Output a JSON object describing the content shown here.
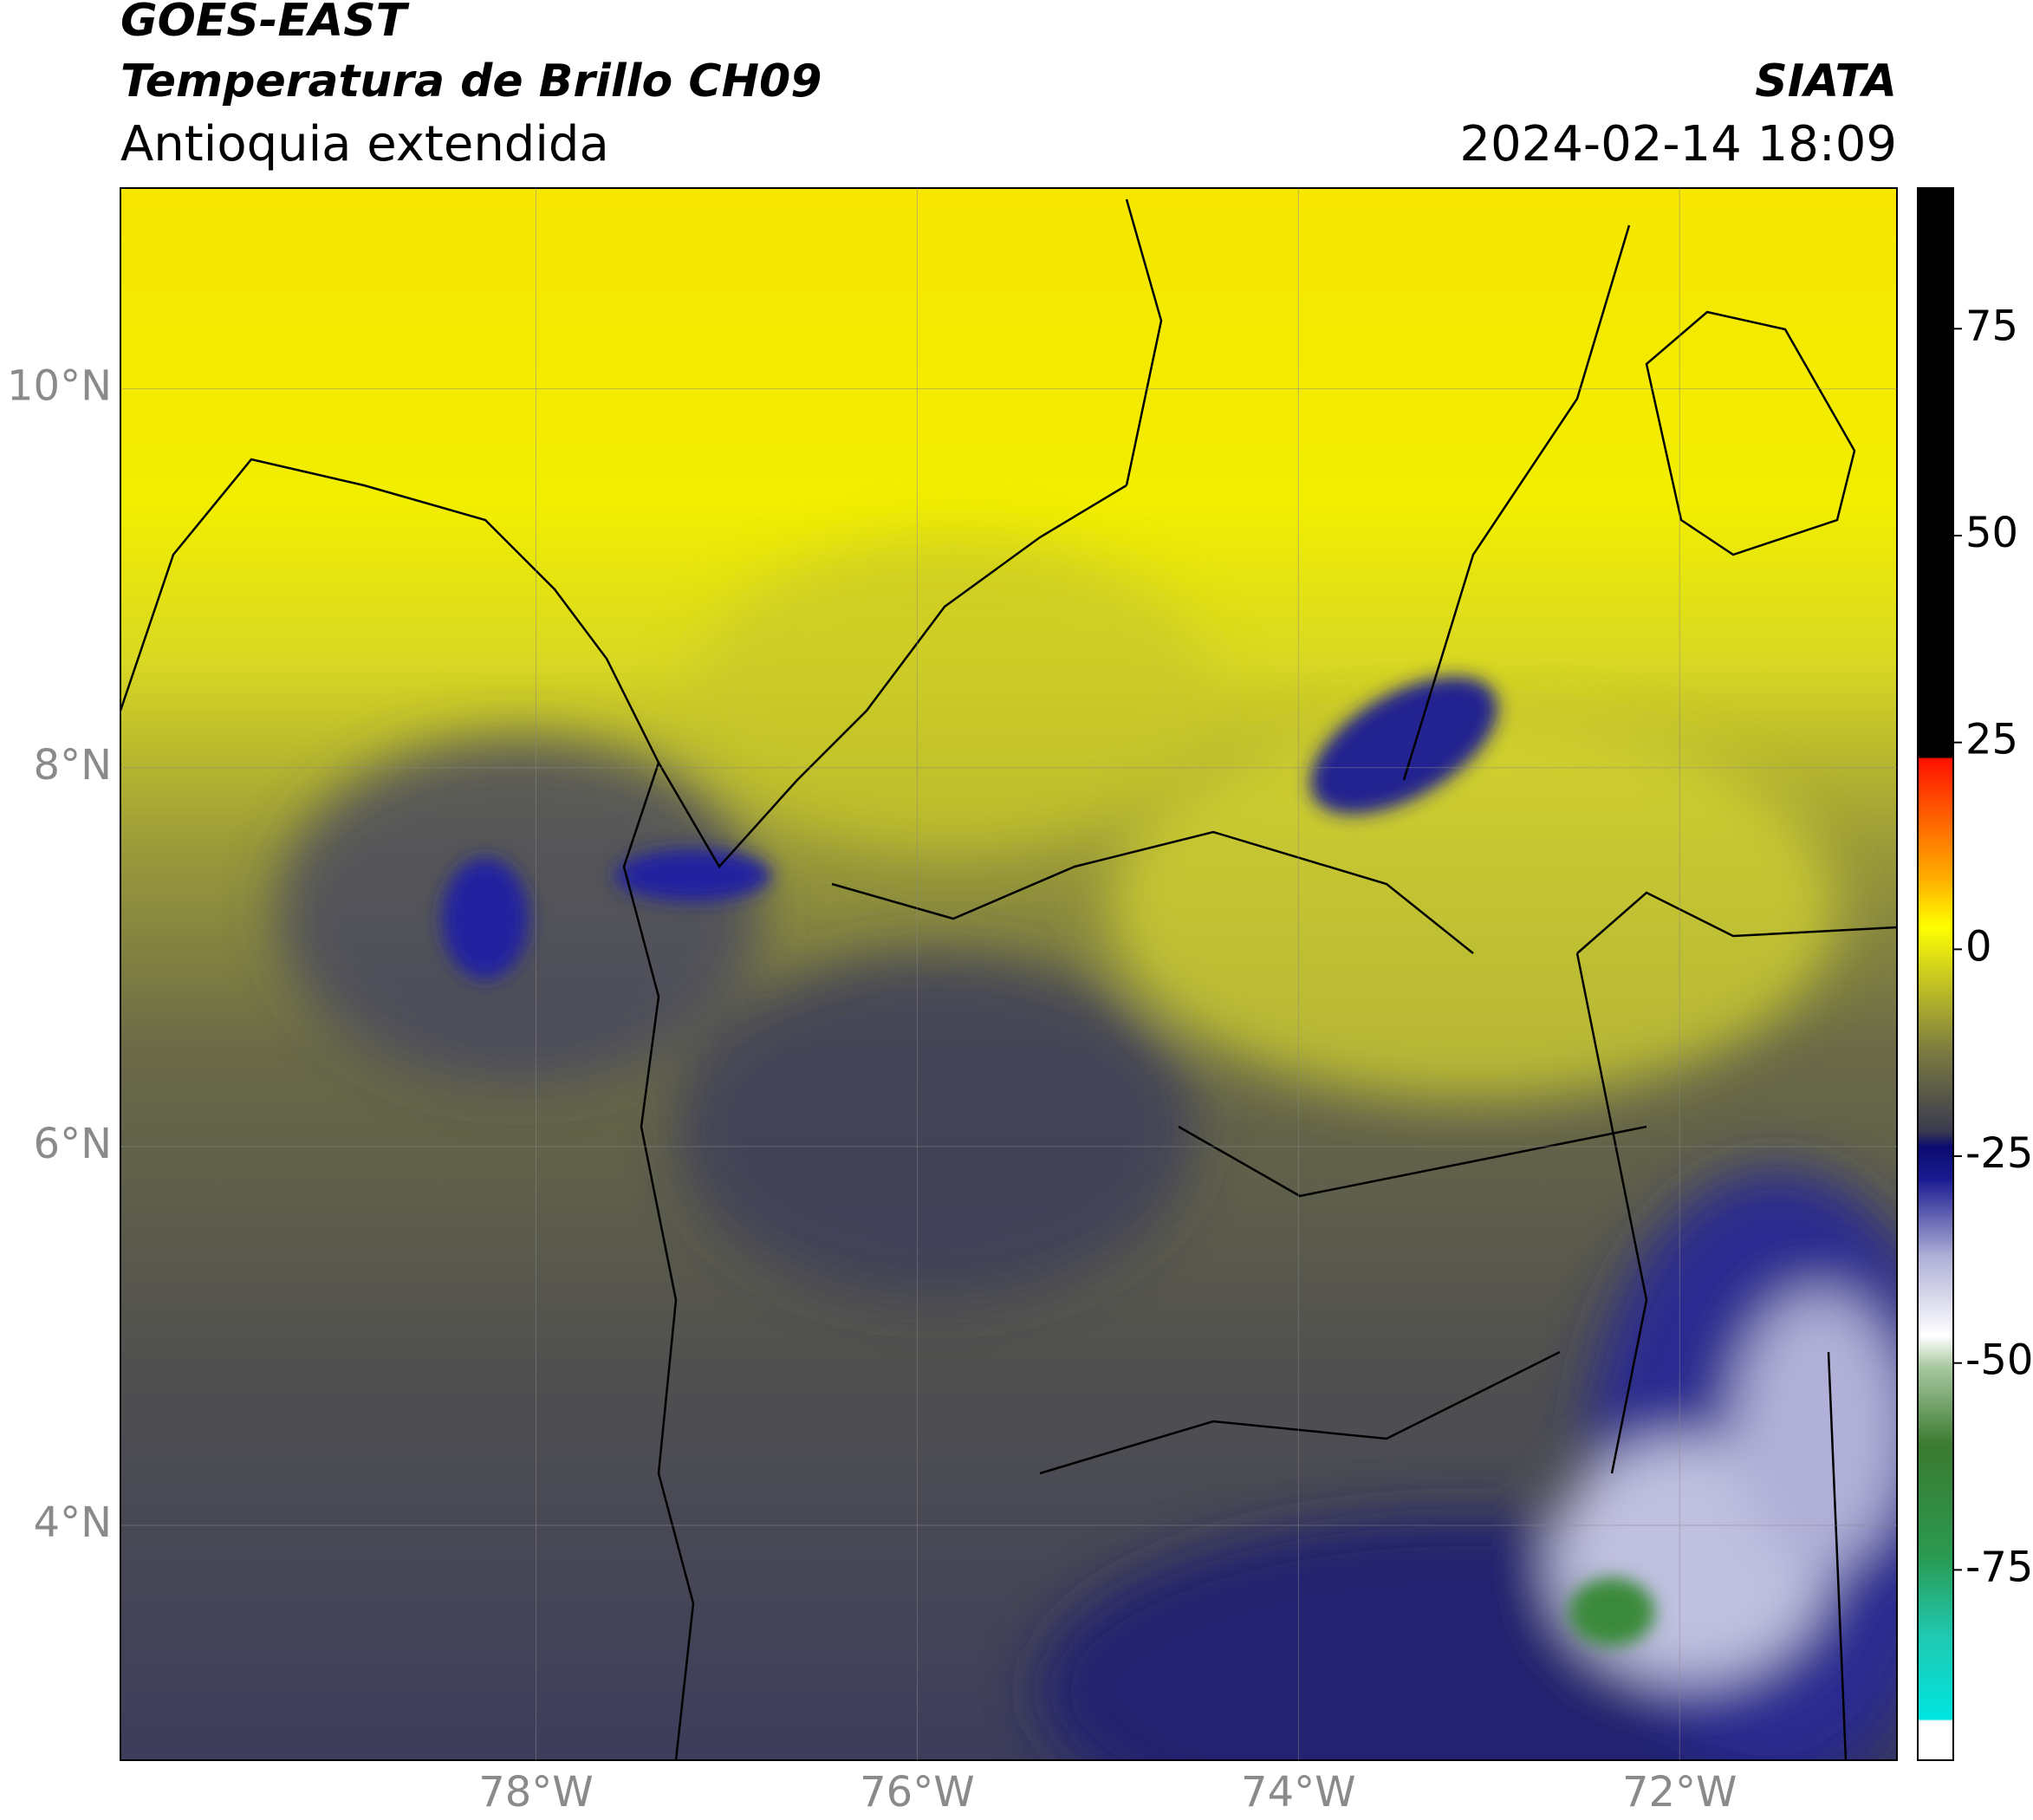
{
  "header": {
    "satellite": "GOES-EAST",
    "product": "Temperatura de Brillo CH09",
    "region": "Antioquia extendida",
    "source": "SIATA",
    "datetime": "2024-02-14 18:09"
  },
  "map": {
    "lat_range": [
      2.76,
      11.06
    ],
    "lon_range": [
      -80.18,
      -70.86
    ],
    "lat_ticks": [
      {
        "value": 10,
        "label": "10°N"
      },
      {
        "value": 8,
        "label": "8°N"
      },
      {
        "value": 6,
        "label": "6°N"
      },
      {
        "value": 4,
        "label": "4°N"
      }
    ],
    "lon_ticks": [
      {
        "value": -78,
        "label": "78°W"
      },
      {
        "value": -76,
        "label": "76°W"
      },
      {
        "value": -74,
        "label": "74°W"
      },
      {
        "value": -72,
        "label": "72°W"
      }
    ]
  },
  "colorbar": {
    "range": [
      -98,
      92
    ],
    "ticks": [
      75,
      50,
      25,
      0,
      -25,
      -50,
      -75
    ]
  }
}
